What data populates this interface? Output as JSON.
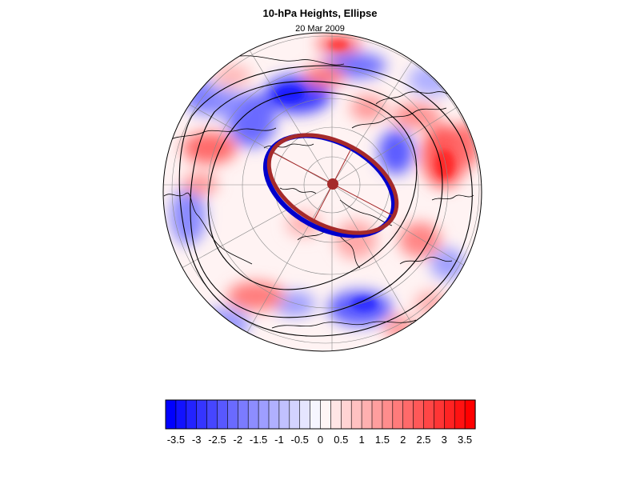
{
  "title": "10-hPa Heights, Ellipse",
  "subtitle": "20 Mar 2009",
  "colors": {
    "negative_max": "#0000ff",
    "positive_max": "#ff0000",
    "contour": "#000000",
    "ellipse_fit": "#a52a2a",
    "vortex_edge": "#0000cc",
    "graticule": "#888888",
    "coastline": "#000000"
  },
  "colorbar": {
    "min": -3.75,
    "max": 3.75,
    "step": 0.25,
    "tick_labels": [
      "-3.5",
      "-3",
      "-2.5",
      "-2",
      "-1.5",
      "-1",
      "-0.5",
      "0",
      "0.5",
      "1",
      "1.5",
      "2",
      "2.5",
      "3",
      "3.5"
    ]
  },
  "map": {
    "projection": "north polar stereographic",
    "features": [
      "height anomaly shading",
      "black height contours",
      "blue vortex edge",
      "brown fitted ellipse",
      "ellipse center marker",
      "ellipse axes",
      "coastlines",
      "graticule"
    ]
  }
}
